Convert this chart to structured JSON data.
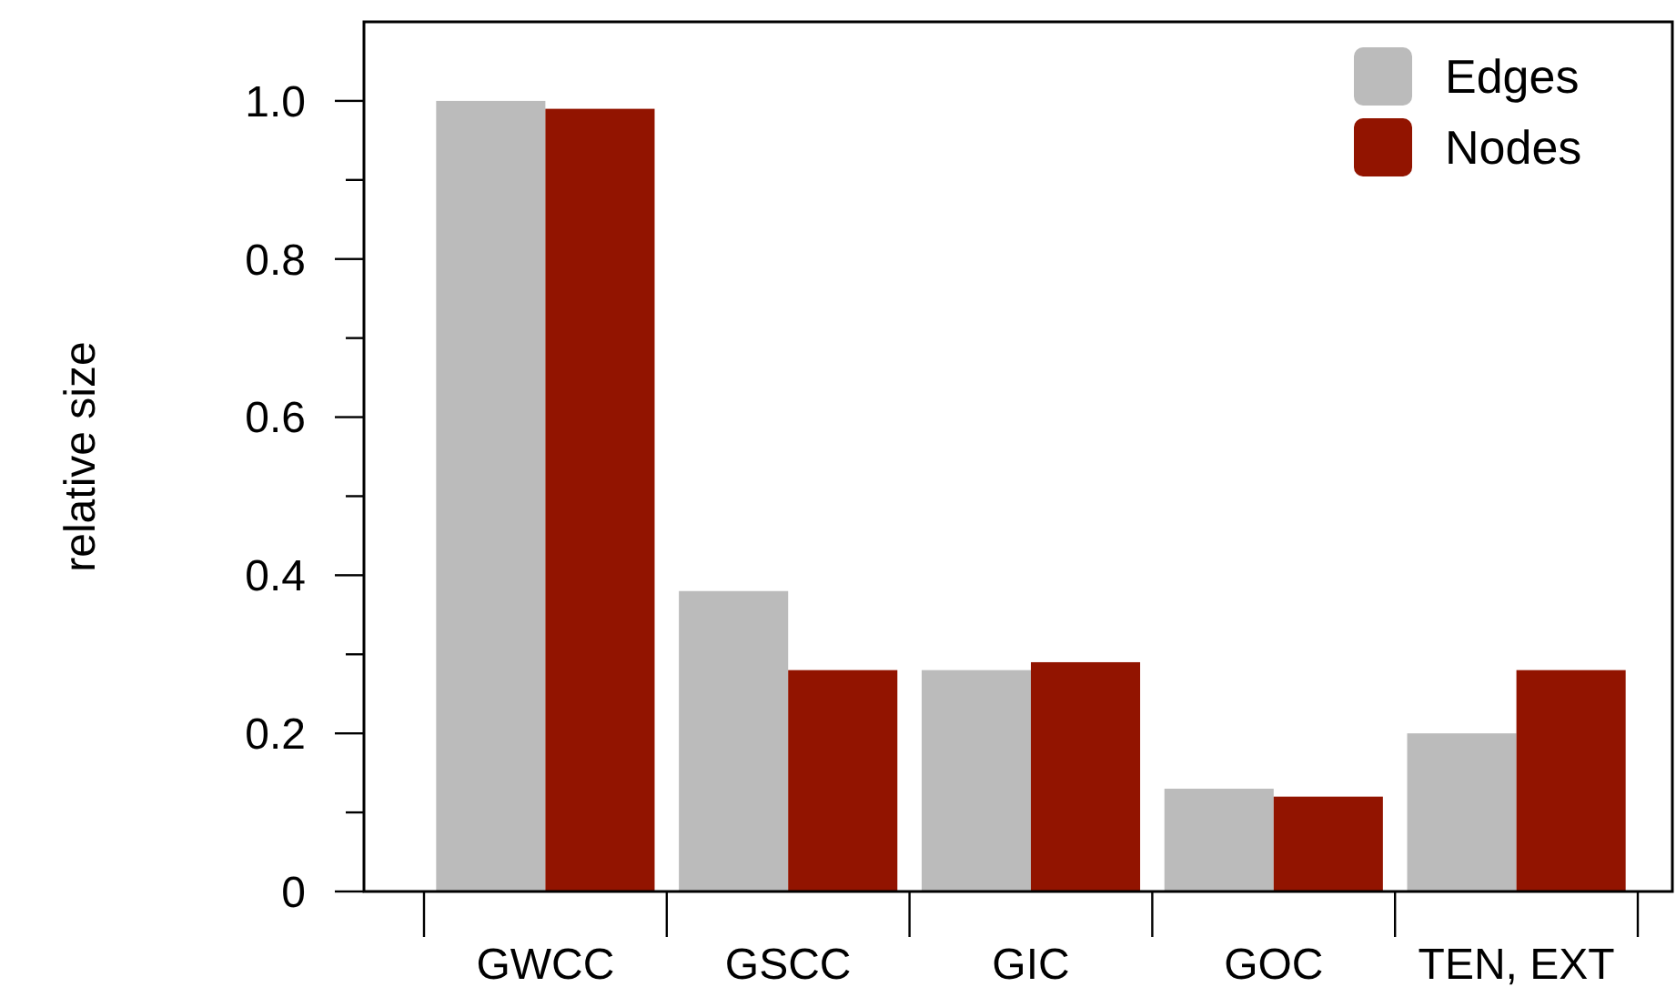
{
  "chart_data": {
    "type": "bar",
    "ylabel": "relative size",
    "categories": [
      "GWCC",
      "GSCC",
      "GIC",
      "GOC",
      "TEN, EXT"
    ],
    "series": [
      {
        "name": "Edges",
        "color": "#bbbbbb",
        "values": [
          1.0,
          0.38,
          0.28,
          0.13,
          0.2
        ]
      },
      {
        "name": "Nodes",
        "color": "#921400",
        "values": [
          0.99,
          0.28,
          0.29,
          0.12,
          0.28
        ]
      }
    ],
    "ylim": [
      0,
      1.1
    ],
    "yticks": [
      0,
      {
        "value": 0.1,
        "label": null
      },
      0.2,
      {
        "value": 0.3,
        "label": null
      },
      0.4,
      {
        "value": 0.5,
        "label": null
      },
      0.6,
      {
        "value": 0.7,
        "label": null
      },
      0.8,
      {
        "value": 0.9,
        "label": null
      },
      {
        "value": 1,
        "label": "1.0"
      }
    ],
    "grid": false,
    "legend": "top right"
  }
}
